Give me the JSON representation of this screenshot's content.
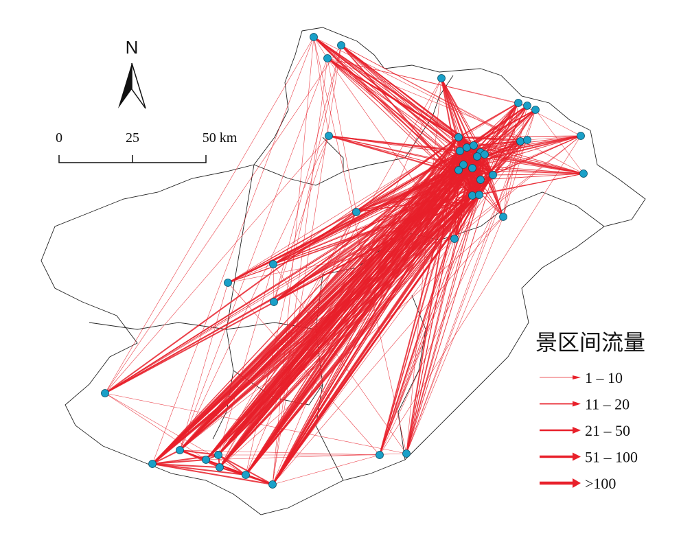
{
  "north_arrow": {
    "label": "N"
  },
  "scale_bar": {
    "labels": [
      "0",
      "25",
      "50 km"
    ]
  },
  "legend": {
    "title": "景区间流量",
    "items": [
      "1 – 10",
      "11 – 20",
      "21 – 50",
      "51 – 100",
      ">100"
    ]
  }
}
